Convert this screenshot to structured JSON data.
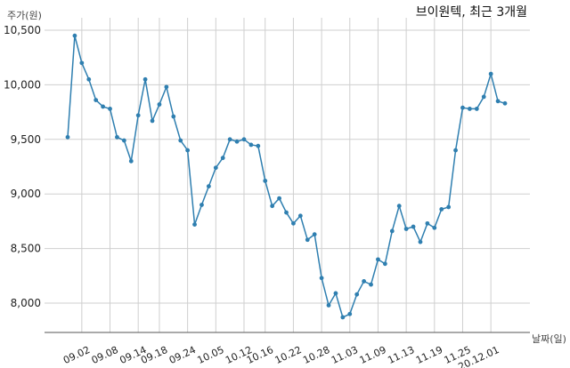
{
  "chart_data": {
    "type": "line",
    "title": "브이원텍, 최근 3개월",
    "ylabel": "주가(원)",
    "xlabel": "날짜(일)",
    "ylim": [
      7750,
      10600
    ],
    "yticks": [
      8000,
      8500,
      9000,
      9500,
      10000,
      10500
    ],
    "ytick_labels": [
      "8,000",
      "8,500",
      "9,000",
      "9,500",
      "10,000",
      "10,500"
    ],
    "xtick_labels": [
      "09.02",
      "09.08",
      "09.14",
      "09.18",
      "09.24",
      "10.05",
      "10.12",
      "10.16",
      "10.22",
      "10.28",
      "11.03",
      "11.09",
      "11.13",
      "11.19",
      "11.25",
      "20.12.01"
    ],
    "xtick_indices": [
      2,
      6,
      10,
      13,
      17,
      21,
      25,
      28,
      32,
      36,
      40,
      44,
      48,
      52,
      56,
      60
    ],
    "grid": true,
    "series": [
      {
        "color": "#2f7fb0",
        "values": [
          9520,
          10450,
          10200,
          10050,
          9860,
          9800,
          9780,
          9520,
          9490,
          9300,
          9720,
          10050,
          9670,
          9820,
          9980,
          9710,
          9490,
          9400,
          8720,
          8900,
          9070,
          9240,
          9330,
          9500,
          9480,
          9500,
          9450,
          9440,
          9120,
          8890,
          8960,
          8830,
          8730,
          8800,
          8580,
          8630,
          8230,
          7980,
          8090,
          7870,
          7900,
          8080,
          8200,
          8170,
          8400,
          8360,
          8660,
          8890,
          8680,
          8700,
          8560,
          8730,
          8690,
          8860,
          8880,
          9400,
          9790,
          9780,
          9780,
          9890,
          10100,
          9850,
          9830
        ]
      }
    ]
  }
}
